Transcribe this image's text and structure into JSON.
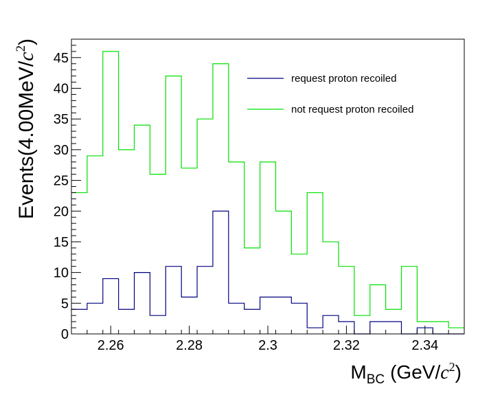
{
  "chart_data": {
    "type": "histogram",
    "xlabel": {
      "main": "M",
      "sub": "BC",
      "unit_open": "(GeV/",
      "unit_var": "c",
      "unit_exp": "2",
      "unit_close": ")"
    },
    "ylabel": {
      "main": "Events(4.00MeV/",
      "unit_var": "c",
      "unit_exp": "2",
      "unit_close": ")"
    },
    "xlim": [
      2.25,
      2.35
    ],
    "ylim": [
      0,
      48
    ],
    "bin_width": 0.004,
    "bin_start": 2.25,
    "x_ticks": [
      "2.26",
      "2.28",
      "2.3",
      "2.32",
      "2.34"
    ],
    "y_ticks": [
      "0",
      "5",
      "10",
      "15",
      "20",
      "25",
      "30",
      "35",
      "40",
      "45"
    ],
    "x_tick_values": [
      2.26,
      2.28,
      2.3,
      2.32,
      2.34
    ],
    "y_tick_values": [
      0,
      5,
      10,
      15,
      20,
      25,
      30,
      35,
      40,
      45
    ],
    "series": [
      {
        "name": "not request proton recoiled",
        "color": "#00e000",
        "values": [
          23,
          29,
          46,
          30,
          34,
          26,
          42,
          27,
          35,
          44,
          28,
          14,
          28,
          20,
          13,
          23,
          15,
          11,
          3,
          8,
          4,
          11,
          2,
          2,
          1
        ]
      },
      {
        "name": "request proton recoiled",
        "color": "#000080",
        "values": [
          4,
          5,
          9,
          4,
          10,
          3,
          11,
          6,
          11,
          20,
          5,
          4,
          6,
          6,
          5,
          1,
          3,
          2,
          0,
          2,
          2,
          0,
          1,
          0,
          0
        ]
      }
    ],
    "legend": {
      "position": "top-right",
      "entries": [
        {
          "label": "request proton recoiled",
          "color": "#000080"
        },
        {
          "label": "not request proton recoiled",
          "color": "#00e000"
        }
      ]
    }
  }
}
